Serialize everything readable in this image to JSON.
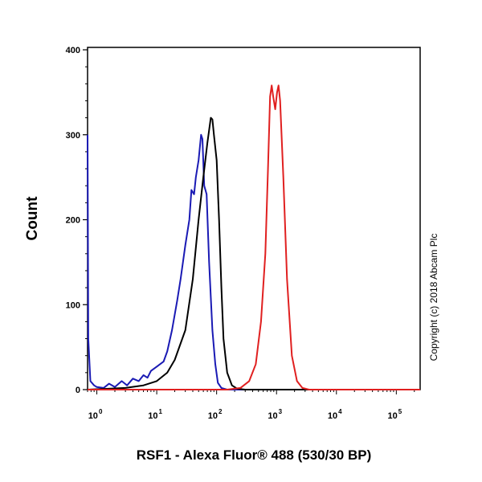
{
  "chart_data": {
    "type": "line",
    "xscale": "log",
    "xlabel": "RSF1 - Alexa Fluor® 488 (530/30 BP)",
    "ylabel": "Count",
    "xlim": [
      0.7,
      250000
    ],
    "ylim": [
      0,
      400
    ],
    "y_ticks": [
      0,
      100,
      200,
      300,
      400
    ],
    "x_tick_labels": [
      {
        "base": "10",
        "exp": "0"
      },
      {
        "base": "10",
        "exp": "1"
      },
      {
        "base": "10",
        "exp": "2"
      },
      {
        "base": "10",
        "exp": "3"
      },
      {
        "base": "10",
        "exp": "4"
      },
      {
        "base": "10",
        "exp": "5"
      }
    ],
    "annotation": "Copyright (c) 2018 Abcam Plc",
    "grid": false,
    "series": [
      {
        "color": "#1a1ab4",
        "points": [
          [
            0.7,
            300
          ],
          [
            0.72,
            60
          ],
          [
            0.78,
            10
          ],
          [
            0.9,
            5
          ],
          [
            1.0,
            3
          ],
          [
            1.3,
            2
          ],
          [
            1.6,
            7
          ],
          [
            2.0,
            3
          ],
          [
            2.6,
            10
          ],
          [
            3.2,
            5
          ],
          [
            4.0,
            13
          ],
          [
            5.0,
            10
          ],
          [
            6.0,
            17
          ],
          [
            7.0,
            14
          ],
          [
            8.0,
            22
          ],
          [
            10,
            27
          ],
          [
            13,
            33
          ],
          [
            15,
            45
          ],
          [
            18,
            70
          ],
          [
            22,
            105
          ],
          [
            25,
            130
          ],
          [
            30,
            170
          ],
          [
            35,
            200
          ],
          [
            38,
            235
          ],
          [
            42,
            230
          ],
          [
            45,
            250
          ],
          [
            50,
            270
          ],
          [
            55,
            300
          ],
          [
            58,
            295
          ],
          [
            62,
            240
          ],
          [
            68,
            230
          ],
          [
            75,
            150
          ],
          [
            85,
            70
          ],
          [
            95,
            30
          ],
          [
            105,
            8
          ],
          [
            120,
            2
          ],
          [
            150,
            0
          ],
          [
            250000,
            0
          ]
        ]
      },
      {
        "color": "#000000",
        "points": [
          [
            0.7,
            0
          ],
          [
            3,
            2
          ],
          [
            6,
            5
          ],
          [
            10,
            10
          ],
          [
            15,
            20
          ],
          [
            20,
            35
          ],
          [
            30,
            70
          ],
          [
            40,
            130
          ],
          [
            50,
            200
          ],
          [
            60,
            250
          ],
          [
            70,
            290
          ],
          [
            80,
            320
          ],
          [
            85,
            318
          ],
          [
            90,
            300
          ],
          [
            100,
            270
          ],
          [
            110,
            200
          ],
          [
            120,
            120
          ],
          [
            130,
            60
          ],
          [
            150,
            20
          ],
          [
            180,
            5
          ],
          [
            220,
            1
          ],
          [
            300,
            0
          ],
          [
            250000,
            0
          ]
        ]
      },
      {
        "color": "#e02020",
        "points": [
          [
            0.7,
            0
          ],
          [
            150,
            0
          ],
          [
            250,
            2
          ],
          [
            350,
            10
          ],
          [
            450,
            30
          ],
          [
            550,
            80
          ],
          [
            650,
            160
          ],
          [
            720,
            260
          ],
          [
            780,
            345
          ],
          [
            830,
            358
          ],
          [
            880,
            345
          ],
          [
            950,
            330
          ],
          [
            1020,
            350
          ],
          [
            1080,
            358
          ],
          [
            1150,
            340
          ],
          [
            1300,
            250
          ],
          [
            1500,
            130
          ],
          [
            1800,
            40
          ],
          [
            2200,
            10
          ],
          [
            2700,
            2
          ],
          [
            3500,
            0
          ],
          [
            250000,
            0
          ]
        ]
      }
    ]
  }
}
